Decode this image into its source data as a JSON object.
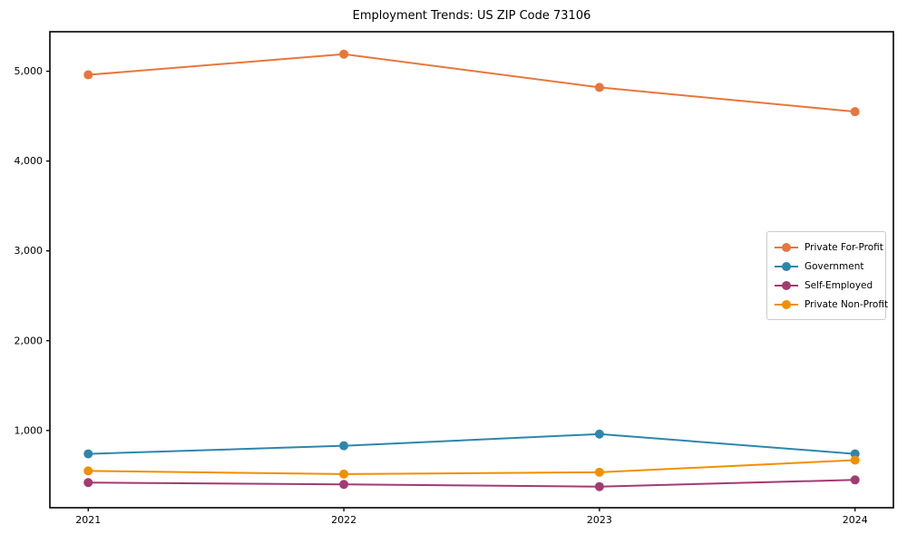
{
  "page": {
    "title": "Employment Trends: US ZIP Code 73106"
  },
  "chart_data": {
    "type": "line",
    "title": "Employment Trends: US ZIP Code 73106",
    "categories": [
      "2021",
      "2022",
      "2023",
      "2024"
    ],
    "x": [
      2021,
      2022,
      2023,
      2024
    ],
    "series": [
      {
        "name": "Private For-Profit",
        "color": "#e8763c",
        "values": [
          4960,
          5190,
          4820,
          4550
        ]
      },
      {
        "name": "Government",
        "color": "#2e86ab",
        "values": [
          740,
          830,
          960,
          740
        ]
      },
      {
        "name": "Self-Employed",
        "color": "#a23b72",
        "values": [
          420,
          400,
          375,
          450
        ]
      },
      {
        "name": "Private Non-Profit",
        "color": "#f18f01",
        "values": [
          550,
          515,
          535,
          670
        ]
      }
    ],
    "yticks": [
      1000,
      2000,
      3000,
      4000,
      5000
    ],
    "ytick_labels": [
      "1,000",
      "2,000",
      "3,000",
      "4,000",
      "5,000"
    ],
    "xlim": [
      2020.85,
      2024.15
    ],
    "ylim": [
      140,
      5440
    ],
    "grid": false,
    "legend_position": "center right",
    "background_color": "#ffffff",
    "axis_color": "#000000",
    "marker": "circle"
  }
}
